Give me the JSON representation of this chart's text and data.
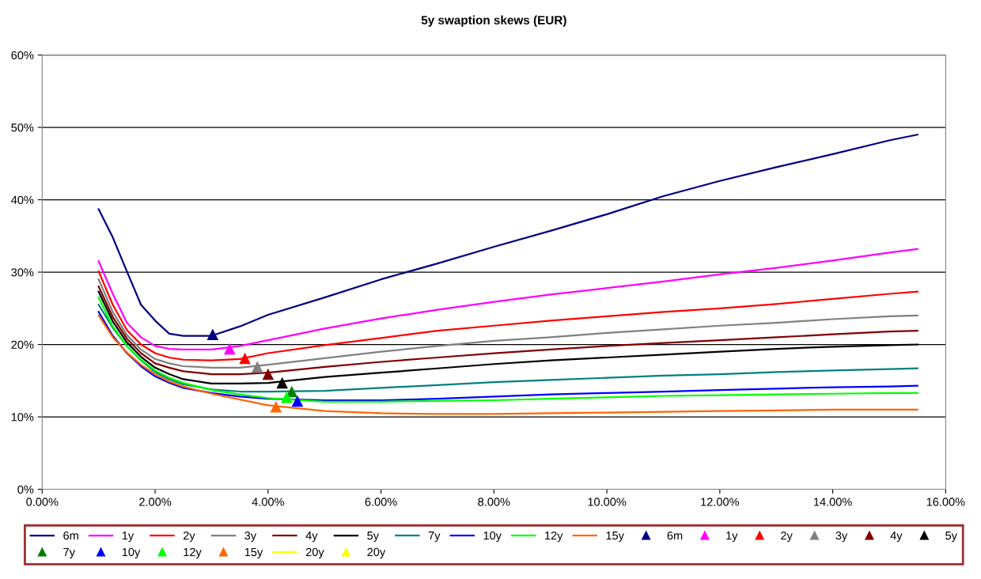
{
  "chart_data": {
    "type": "line",
    "title": "5y swaption skews (EUR)",
    "x": [
      1.0,
      1.25,
      1.5,
      1.75,
      2.0,
      2.25,
      2.5,
      3.0,
      3.5,
      4.0,
      5.0,
      6.0,
      7.0,
      8.0,
      9.0,
      10.0,
      11.0,
      12.0,
      13.0,
      14.0,
      15.0,
      15.5
    ],
    "xlim": [
      0,
      16
    ],
    "xticks": [
      {
        "value": 0,
        "label": "0.00%"
      },
      {
        "value": 2,
        "label": "2.00%"
      },
      {
        "value": 4,
        "label": "4.00%"
      },
      {
        "value": 6,
        "label": "6.00%"
      },
      {
        "value": 8,
        "label": "8.00%"
      },
      {
        "value": 10,
        "label": "10.00%"
      },
      {
        "value": 12,
        "label": "12.00%"
      },
      {
        "value": 14,
        "label": "14.00%"
      },
      {
        "value": 16,
        "label": "16.00%"
      }
    ],
    "ylim": [
      0,
      60
    ],
    "yticks": [
      {
        "value": 0,
        "label": "0%"
      },
      {
        "value": 10,
        "label": "10%"
      },
      {
        "value": 20,
        "label": "20%"
      },
      {
        "value": 30,
        "label": "30%"
      },
      {
        "value": 40,
        "label": "40%"
      },
      {
        "value": 50,
        "label": "50%"
      },
      {
        "value": 60,
        "label": "60%"
      }
    ],
    "grid": "y",
    "legend": "bottom",
    "line_style": "solid",
    "series": [
      {
        "name": "6m",
        "color": "#000080",
        "values": [
          38.7,
          34.8,
          30.1,
          25.5,
          23.3,
          21.5,
          21.2,
          21.2,
          22.5,
          24.1,
          26.5,
          29.0,
          31.2,
          33.5,
          35.7,
          38.0,
          40.5,
          42.6,
          44.5,
          46.3,
          48.2,
          49.0
        ]
      },
      {
        "name": "1y",
        "color": "#ff00ff",
        "values": [
          31.5,
          27.0,
          23.0,
          21.0,
          19.8,
          19.4,
          19.3,
          19.3,
          19.8,
          20.6,
          22.2,
          23.6,
          24.8,
          25.9,
          26.9,
          27.8,
          28.7,
          29.7,
          30.6,
          31.6,
          32.7,
          33.2
        ]
      },
      {
        "name": "2y",
        "color": "#ff0000",
        "values": [
          30.1,
          25.5,
          22.0,
          20.0,
          18.8,
          18.2,
          17.9,
          17.8,
          18.0,
          18.8,
          19.9,
          20.9,
          21.9,
          22.6,
          23.3,
          23.9,
          24.5,
          25.0,
          25.6,
          26.3,
          27.0,
          27.3
        ]
      },
      {
        "name": "3y",
        "color": "#808080",
        "values": [
          29.0,
          24.5,
          21.3,
          19.3,
          18.0,
          17.4,
          17.0,
          16.8,
          16.8,
          17.2,
          18.1,
          19.0,
          19.8,
          20.5,
          21.0,
          21.6,
          22.1,
          22.6,
          23.0,
          23.5,
          23.9,
          24.0
        ]
      },
      {
        "name": "4y",
        "color": "#800000",
        "values": [
          28.0,
          23.8,
          20.8,
          18.8,
          17.4,
          16.8,
          16.3,
          15.9,
          15.9,
          16.1,
          16.9,
          17.6,
          18.2,
          18.8,
          19.3,
          19.8,
          20.2,
          20.6,
          21.0,
          21.4,
          21.8,
          21.9
        ]
      },
      {
        "name": "5y",
        "color": "#000000",
        "values": [
          27.3,
          23.2,
          20.3,
          18.3,
          16.8,
          15.9,
          15.2,
          14.6,
          14.6,
          14.7,
          15.5,
          16.1,
          16.7,
          17.3,
          17.8,
          18.2,
          18.6,
          19.0,
          19.4,
          19.7,
          19.9,
          20.0
        ]
      },
      {
        "name": "7y",
        "color": "#008080",
        "values": [
          25.5,
          22.3,
          19.8,
          17.8,
          16.2,
          15.2,
          14.5,
          13.8,
          13.5,
          13.5,
          13.6,
          14.0,
          14.4,
          14.8,
          15.1,
          15.4,
          15.7,
          15.9,
          16.2,
          16.4,
          16.6,
          16.7
        ]
      },
      {
        "name": "10y",
        "color": "#0000ff",
        "values": [
          24.5,
          21.2,
          18.8,
          17.0,
          15.6,
          14.7,
          14.0,
          13.3,
          12.8,
          12.5,
          12.3,
          12.3,
          12.5,
          12.8,
          13.1,
          13.3,
          13.5,
          13.7,
          13.9,
          14.1,
          14.2,
          14.3
        ]
      },
      {
        "name": "12y",
        "color": "#00ff00",
        "values": [
          26.5,
          22.5,
          19.8,
          17.9,
          16.4,
          15.4,
          14.7,
          13.7,
          13.1,
          12.6,
          12.1,
          12.1,
          12.2,
          12.3,
          12.5,
          12.7,
          12.9,
          13.0,
          13.1,
          13.2,
          13.3,
          13.3
        ]
      },
      {
        "name": "15y",
        "color": "#ff6600",
        "values": [
          24.0,
          21.0,
          18.9,
          17.2,
          15.9,
          14.9,
          14.2,
          13.2,
          12.4,
          11.6,
          10.8,
          10.5,
          10.4,
          10.4,
          10.5,
          10.6,
          10.7,
          10.8,
          10.9,
          11.0,
          11.0,
          11.0
        ]
      },
      {
        "name": "6m",
        "type": "scatter",
        "marker": "triangle",
        "color": "#000080",
        "x": [
          3.02
        ],
        "values": [
          21.4
        ]
      },
      {
        "name": "1y",
        "type": "scatter",
        "marker": "triangle",
        "color": "#ff00ff",
        "x": [
          3.32
        ],
        "values": [
          19.4
        ]
      },
      {
        "name": "2y",
        "type": "scatter",
        "marker": "triangle",
        "color": "#ff0000",
        "x": [
          3.59
        ],
        "values": [
          18.1
        ]
      },
      {
        "name": "3y",
        "type": "scatter",
        "marker": "triangle",
        "color": "#808080",
        "x": [
          3.81
        ],
        "values": [
          16.9
        ]
      },
      {
        "name": "4y",
        "type": "scatter",
        "marker": "triangle",
        "color": "#800000",
        "x": [
          4.0
        ],
        "values": [
          15.9
        ]
      },
      {
        "name": "5y",
        "type": "scatter",
        "marker": "triangle",
        "color": "#000000",
        "x": [
          4.25
        ],
        "values": [
          14.7
        ]
      },
      {
        "name": "7y",
        "type": "scatter",
        "marker": "triangle",
        "color": "#008000",
        "x": [
          4.42
        ],
        "values": [
          13.5
        ]
      },
      {
        "name": "10y",
        "type": "scatter",
        "marker": "triangle",
        "color": "#0000ff",
        "x": [
          4.52
        ],
        "values": [
          12.2
        ]
      },
      {
        "name": "12y",
        "type": "scatter",
        "marker": "triangle",
        "color": "#00ff00",
        "x": [
          4.33
        ],
        "values": [
          12.7
        ]
      },
      {
        "name": "15y",
        "type": "scatter",
        "marker": "triangle",
        "color": "#ff6600",
        "x": [
          4.14
        ],
        "values": [
          11.4
        ]
      },
      {
        "name": "20y",
        "color": "#ffff00",
        "values": [
          null,
          null,
          null,
          null,
          null,
          null,
          null,
          null,
          null,
          null,
          null,
          null,
          null,
          null,
          null,
          null,
          null,
          null,
          null,
          null,
          null,
          null
        ]
      },
      {
        "name": "20y",
        "type": "scatter",
        "marker": "triangle",
        "color": "#ffff00",
        "values": [
          null,
          null,
          null,
          null,
          null,
          null,
          null,
          null,
          null,
          null,
          null,
          null,
          null,
          null,
          null,
          null,
          null,
          null,
          null,
          null,
          null,
          null
        ]
      }
    ]
  }
}
